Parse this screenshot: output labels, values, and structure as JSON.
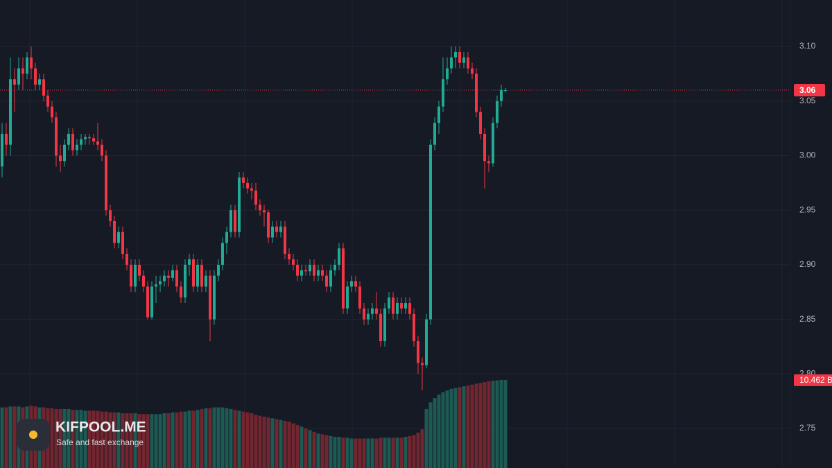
{
  "chart_data": {
    "type": "candlestick",
    "ohlc": [
      [
        2.99,
        3.03,
        2.98,
        3.02
      ],
      [
        3.02,
        3.03,
        3.0,
        3.01
      ],
      [
        3.01,
        3.09,
        3.0,
        3.07
      ],
      [
        3.07,
        3.08,
        3.04,
        3.065
      ],
      [
        3.065,
        3.09,
        3.06,
        3.08
      ],
      [
        3.08,
        3.09,
        3.06,
        3.075
      ],
      [
        3.075,
        3.095,
        3.07,
        3.09
      ],
      [
        3.09,
        3.1,
        3.07,
        3.08
      ],
      [
        3.08,
        3.085,
        3.06,
        3.065
      ],
      [
        3.065,
        3.075,
        3.06,
        3.07
      ],
      [
        3.07,
        3.075,
        3.05,
        3.055
      ],
      [
        3.055,
        3.06,
        3.04,
        3.045
      ],
      [
        3.045,
        3.05,
        3.03,
        3.035
      ],
      [
        3.035,
        3.04,
        2.99,
        3.0
      ],
      [
        3.0,
        3.01,
        2.985,
        2.995
      ],
      [
        2.995,
        3.015,
        2.99,
        3.01
      ],
      [
        3.01,
        3.025,
        3.005,
        3.02
      ],
      [
        3.02,
        3.025,
        3.0,
        3.005
      ],
      [
        3.005,
        3.015,
        3.0,
        3.01
      ],
      [
        3.01,
        3.02,
        3.005,
        3.015
      ],
      [
        3.015,
        3.02,
        3.01,
        3.017
      ],
      [
        3.017,
        3.02,
        3.01,
        3.016
      ],
      [
        3.016,
        3.02,
        3.01,
        3.013
      ],
      [
        3.013,
        3.03,
        3.005,
        3.01
      ],
      [
        3.01,
        3.015,
        2.995,
        3.0
      ],
      [
        3.0,
        3.005,
        2.945,
        2.95
      ],
      [
        2.95,
        2.955,
        2.935,
        2.94
      ],
      [
        2.94,
        2.945,
        2.915,
        2.92
      ],
      [
        2.92,
        2.935,
        2.915,
        2.93
      ],
      [
        2.93,
        2.935,
        2.905,
        2.91
      ],
      [
        2.91,
        2.915,
        2.895,
        2.9
      ],
      [
        2.9,
        2.905,
        2.875,
        2.88
      ],
      [
        2.88,
        2.905,
        2.875,
        2.9
      ],
      [
        2.9,
        2.905,
        2.885,
        2.89
      ],
      [
        2.89,
        2.895,
        2.875,
        2.88
      ],
      [
        2.88,
        2.885,
        2.85,
        2.852
      ],
      [
        2.852,
        2.885,
        2.85,
        2.88
      ],
      [
        2.88,
        2.89,
        2.865,
        2.882
      ],
      [
        2.882,
        2.89,
        2.875,
        2.885
      ],
      [
        2.885,
        2.895,
        2.88,
        2.89
      ],
      [
        2.89,
        2.895,
        2.88,
        2.888
      ],
      [
        2.888,
        2.9,
        2.885,
        2.895
      ],
      [
        2.895,
        2.9,
        2.875,
        2.88
      ],
      [
        2.88,
        2.885,
        2.865,
        2.87
      ],
      [
        2.87,
        2.905,
        2.865,
        2.9
      ],
      [
        2.9,
        2.91,
        2.89,
        2.905
      ],
      [
        2.905,
        2.91,
        2.875,
        2.88
      ],
      [
        2.88,
        2.905,
        2.875,
        2.9
      ],
      [
        2.9,
        2.905,
        2.875,
        2.88
      ],
      [
        2.88,
        2.895,
        2.875,
        2.89
      ],
      [
        2.89,
        2.895,
        2.83,
        2.85
      ],
      [
        2.85,
        2.895,
        2.845,
        2.89
      ],
      [
        2.89,
        2.905,
        2.885,
        2.9
      ],
      [
        2.9,
        2.925,
        2.895,
        2.92
      ],
      [
        2.92,
        2.935,
        2.91,
        2.93
      ],
      [
        2.93,
        2.955,
        2.925,
        2.95
      ],
      [
        2.95,
        2.955,
        2.925,
        2.93
      ],
      [
        2.93,
        2.985,
        2.925,
        2.98
      ],
      [
        2.98,
        2.985,
        2.97,
        2.975
      ],
      [
        2.975,
        2.98,
        2.965,
        2.97
      ],
      [
        2.97,
        2.975,
        2.96,
        2.968
      ],
      [
        2.968,
        2.975,
        2.95,
        2.955
      ],
      [
        2.955,
        2.96,
        2.945,
        2.95
      ],
      [
        2.95,
        2.955,
        2.935,
        2.948
      ],
      [
        2.948,
        2.95,
        2.92,
        2.925
      ],
      [
        2.925,
        2.94,
        2.92,
        2.935
      ],
      [
        2.935,
        2.94,
        2.925,
        2.93
      ],
      [
        2.93,
        2.94,
        2.925,
        2.935
      ],
      [
        2.935,
        2.94,
        2.905,
        2.91
      ],
      [
        2.91,
        2.915,
        2.9,
        2.905
      ],
      [
        2.905,
        2.91,
        2.895,
        2.9
      ],
      [
        2.9,
        2.905,
        2.885,
        2.89
      ],
      [
        2.89,
        2.9,
        2.885,
        2.895
      ],
      [
        2.895,
        2.9,
        2.89,
        2.894
      ],
      [
        2.894,
        2.905,
        2.89,
        2.9
      ],
      [
        2.9,
        2.905,
        2.885,
        2.89
      ],
      [
        2.89,
        2.9,
        2.885,
        2.895
      ],
      [
        2.895,
        2.9,
        2.885,
        2.89
      ],
      [
        2.89,
        2.895,
        2.875,
        2.88
      ],
      [
        2.88,
        2.9,
        2.875,
        2.895
      ],
      [
        2.895,
        2.905,
        2.89,
        2.9
      ],
      [
        2.9,
        2.92,
        2.895,
        2.915
      ],
      [
        2.915,
        2.92,
        2.855,
        2.86
      ],
      [
        2.86,
        2.885,
        2.855,
        2.88
      ],
      [
        2.88,
        2.89,
        2.875,
        2.885
      ],
      [
        2.885,
        2.89,
        2.875,
        2.88
      ],
      [
        2.88,
        2.885,
        2.855,
        2.86
      ],
      [
        2.86,
        2.865,
        2.845,
        2.85
      ],
      [
        2.85,
        2.86,
        2.845,
        2.855
      ],
      [
        2.855,
        2.865,
        2.85,
        2.86
      ],
      [
        2.86,
        2.875,
        2.85,
        2.855
      ],
      [
        2.855,
        2.86,
        2.825,
        2.83
      ],
      [
        2.83,
        2.865,
        2.825,
        2.86
      ],
      [
        2.86,
        2.875,
        2.855,
        2.87
      ],
      [
        2.87,
        2.875,
        2.85,
        2.855
      ],
      [
        2.855,
        2.87,
        2.85,
        2.865
      ],
      [
        2.865,
        2.87,
        2.855,
        2.86
      ],
      [
        2.86,
        2.87,
        2.855,
        2.865
      ],
      [
        2.865,
        2.87,
        2.85,
        2.855
      ],
      [
        2.855,
        2.86,
        2.825,
        2.83
      ],
      [
        2.83,
        2.835,
        2.8,
        2.81
      ],
      [
        2.81,
        2.815,
        2.785,
        2.808
      ],
      [
        2.808,
        2.855,
        2.805,
        2.85
      ],
      [
        2.85,
        3.015,
        2.845,
        3.01
      ],
      [
        3.01,
        3.035,
        3.005,
        3.03
      ],
      [
        3.03,
        3.05,
        3.02,
        3.045
      ],
      [
        3.045,
        3.09,
        3.04,
        3.07
      ],
      [
        3.07,
        3.09,
        3.065,
        3.08
      ],
      [
        3.08,
        3.1,
        3.075,
        3.09
      ],
      [
        3.09,
        3.1,
        3.08,
        3.095
      ],
      [
        3.095,
        3.1,
        3.08,
        3.085
      ],
      [
        3.085,
        3.095,
        3.08,
        3.09
      ],
      [
        3.09,
        3.095,
        3.075,
        3.08
      ],
      [
        3.08,
        3.085,
        3.07,
        3.075
      ],
      [
        3.075,
        3.08,
        3.035,
        3.04
      ],
      [
        3.04,
        3.045,
        3.015,
        3.02
      ],
      [
        3.02,
        3.025,
        2.97,
        2.995
      ],
      [
        2.995,
        3.0,
        2.985,
        2.993
      ],
      [
        2.993,
        3.035,
        2.99,
        3.03
      ],
      [
        3.03,
        3.055,
        3.025,
        3.05
      ],
      [
        3.05,
        3.065,
        3.045,
        3.06
      ],
      [
        3.06,
        3.062,
        3.058,
        3.06
      ]
    ],
    "volumes": [
      7.2,
      7.2,
      7.3,
      7.3,
      7.3,
      7.2,
      7.3,
      7.4,
      7.3,
      7.2,
      7.2,
      7.1,
      7.1,
      7.0,
      7.0,
      7.0,
      7.0,
      6.9,
      6.9,
      6.9,
      6.8,
      6.8,
      6.8,
      6.8,
      6.7,
      6.7,
      6.6,
      6.6,
      6.6,
      6.5,
      6.5,
      6.5,
      6.5,
      6.4,
      6.4,
      6.4,
      6.4,
      6.4,
      6.4,
      6.5,
      6.5,
      6.6,
      6.6,
      6.7,
      6.7,
      6.8,
      6.8,
      6.9,
      7.0,
      7.1,
      7.1,
      7.2,
      7.2,
      7.2,
      7.1,
      7.0,
      6.9,
      6.8,
      6.7,
      6.6,
      6.5,
      6.3,
      6.2,
      6.1,
      6.0,
      5.9,
      5.8,
      5.7,
      5.6,
      5.5,
      5.3,
      5.1,
      4.9,
      4.7,
      4.5,
      4.3,
      4.1,
      4.0,
      3.9,
      3.8,
      3.7,
      3.7,
      3.6,
      3.6,
      3.5,
      3.5,
      3.5,
      3.5,
      3.5,
      3.5,
      3.5,
      3.6,
      3.6,
      3.6,
      3.6,
      3.6,
      3.6,
      3.7,
      3.8,
      3.9,
      4.2,
      4.6,
      7.0,
      7.8,
      8.3,
      8.7,
      9.0,
      9.2,
      9.4,
      9.5,
      9.6,
      9.7,
      9.8,
      9.9,
      10.0,
      10.1,
      10.2,
      10.3,
      10.35,
      10.4,
      10.45,
      10.462
    ],
    "ylim": [
      2.7138,
      3.1426
    ],
    "yticks": [
      2.75,
      {
        "value": 2.8,
        "label": "2.80"
      },
      2.85,
      {
        "value": 2.9,
        "label": "2.90"
      },
      2.95,
      {
        "value": 3,
        "label": "3.00"
      },
      3.05,
      {
        "value": 3.1,
        "label": "3.10"
      }
    ],
    "volume_ylim": [
      0,
      20
    ],
    "last_price": 3.06,
    "last_volume_label": "10.462 B",
    "up_color": "#22ab94",
    "down_color": "#f23645",
    "volume_up_color": "#1c5a53",
    "volume_down_color": "#73262f",
    "grid": true
  },
  "watermark": {
    "title": "KIFPOOL.ME",
    "subtitle": "Safe and fast exchange"
  }
}
